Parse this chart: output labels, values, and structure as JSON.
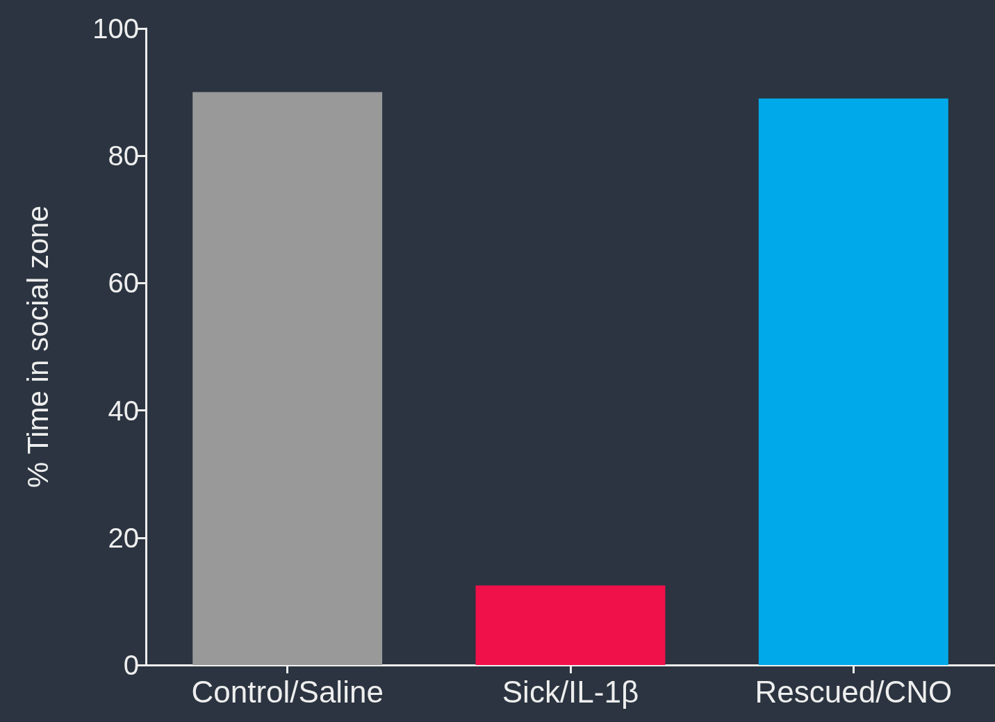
{
  "chart_data": {
    "type": "bar",
    "ylabel": "% Time in social zone",
    "categories": [
      "Control/Saline",
      "Sick/IL-1β",
      "Rescued/CNO"
    ],
    "values": [
      90,
      12.5,
      89
    ],
    "colors": [
      "#999999",
      "#f0104a",
      "#00aaea"
    ],
    "ylim": [
      0,
      100
    ],
    "yticks": [
      0,
      20,
      40,
      60,
      80,
      100
    ]
  }
}
